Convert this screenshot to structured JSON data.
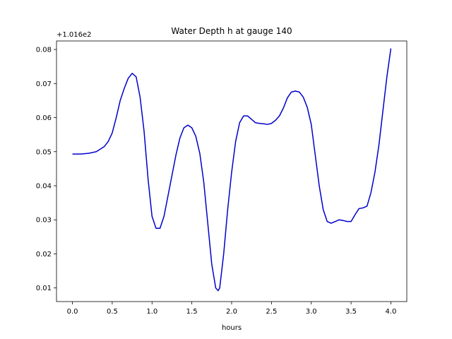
{
  "chart_data": {
    "type": "line",
    "title": "Water Depth h at gauge 140",
    "xlabel": "hours",
    "ylabel": "",
    "offset_label": "+1.016e2",
    "xlim": [
      -0.2,
      4.2
    ],
    "ylim": [
      0.006,
      0.0825
    ],
    "xticks": [
      0.0,
      0.5,
      1.0,
      1.5,
      2.0,
      2.5,
      3.0,
      3.5,
      4.0
    ],
    "xtick_labels": [
      "0.0",
      "0.5",
      "1.0",
      "1.5",
      "2.0",
      "2.5",
      "3.0",
      "3.5",
      "4.0"
    ],
    "yticks": [
      0.01,
      0.02,
      0.03,
      0.04,
      0.05,
      0.06,
      0.07,
      0.08
    ],
    "ytick_labels": [
      "0.01",
      "0.02",
      "0.03",
      "0.04",
      "0.05",
      "0.06",
      "0.07",
      "0.08"
    ],
    "grid": false,
    "series": [
      {
        "color": "#0000cc",
        "x": [
          0.0,
          0.1,
          0.2,
          0.3,
          0.4,
          0.45,
          0.5,
          0.55,
          0.6,
          0.65,
          0.7,
          0.75,
          0.8,
          0.85,
          0.9,
          0.95,
          1.0,
          1.05,
          1.1,
          1.15,
          1.2,
          1.25,
          1.3,
          1.35,
          1.4,
          1.45,
          1.5,
          1.55,
          1.6,
          1.65,
          1.7,
          1.75,
          1.8,
          1.83,
          1.85,
          1.9,
          1.95,
          2.0,
          2.05,
          2.1,
          2.15,
          2.2,
          2.25,
          2.3,
          2.35,
          2.4,
          2.45,
          2.5,
          2.55,
          2.6,
          2.65,
          2.7,
          2.75,
          2.8,
          2.85,
          2.9,
          2.95,
          3.0,
          3.05,
          3.1,
          3.15,
          3.2,
          3.25,
          3.3,
          3.35,
          3.4,
          3.45,
          3.5,
          3.55,
          3.6,
          3.65,
          3.7,
          3.75,
          3.8,
          3.85,
          3.9,
          3.95,
          4.0
        ],
        "y": [
          0.0493,
          0.0493,
          0.0495,
          0.05,
          0.0515,
          0.053,
          0.0555,
          0.06,
          0.065,
          0.0685,
          0.0715,
          0.073,
          0.072,
          0.066,
          0.056,
          0.042,
          0.031,
          0.0275,
          0.0275,
          0.031,
          0.037,
          0.043,
          0.049,
          0.054,
          0.057,
          0.0578,
          0.057,
          0.0545,
          0.0495,
          0.041,
          0.029,
          0.017,
          0.01,
          0.0092,
          0.01,
          0.02,
          0.033,
          0.044,
          0.053,
          0.0585,
          0.0605,
          0.0605,
          0.0595,
          0.0585,
          0.0583,
          0.0582,
          0.058,
          0.0583,
          0.0592,
          0.0605,
          0.0628,
          0.0658,
          0.0675,
          0.0678,
          0.0675,
          0.066,
          0.063,
          0.058,
          0.049,
          0.04,
          0.033,
          0.0295,
          0.029,
          0.0295,
          0.03,
          0.0298,
          0.0295,
          0.0295,
          0.0315,
          0.0333,
          0.0335,
          0.034,
          0.038,
          0.044,
          0.052,
          0.062,
          0.072,
          0.0803
        ]
      }
    ]
  }
}
